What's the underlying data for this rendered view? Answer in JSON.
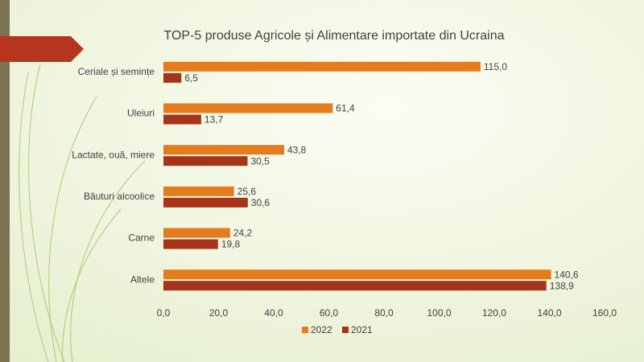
{
  "chart_data": {
    "type": "bar",
    "orientation": "horizontal",
    "title": "TOP-5 produse Agricole și Alimentare importate din Ucraina",
    "categories": [
      "Ceriale și semințe",
      "Uleiuri",
      "Lactate, ouă, miere",
      "Băuturi alcoolice",
      "Carne",
      "Altele"
    ],
    "series": [
      {
        "name": "2022",
        "color": "#e47b1c",
        "values": [
          115.0,
          61.4,
          43.8,
          25.6,
          24.2,
          140.6
        ],
        "value_labels": [
          "115,0",
          "61,4",
          "43,8",
          "25,6",
          "24,2",
          "140,6"
        ]
      },
      {
        "name": "2021",
        "color": "#a6341a",
        "values": [
          6.5,
          13.7,
          30.5,
          30.6,
          19.8,
          138.9
        ],
        "value_labels": [
          "6,5",
          "13,7",
          "30,5",
          "30,6",
          "19,8",
          "138,9"
        ]
      }
    ],
    "xlim": [
      0,
      160
    ],
    "xticks": [
      {
        "value": 0,
        "label": "0,0"
      },
      {
        "value": 20,
        "label": "20,0"
      },
      {
        "value": 40,
        "label": "40,0"
      },
      {
        "value": 60,
        "label": "60,0"
      },
      {
        "value": 80,
        "label": "80,0"
      },
      {
        "value": 100,
        "label": "100,0"
      },
      {
        "value": 120,
        "label": "120,0"
      },
      {
        "value": 140,
        "label": "140,0"
      },
      {
        "value": 160,
        "label": "160,0"
      }
    ],
    "grid": false,
    "legend": "bottom"
  }
}
